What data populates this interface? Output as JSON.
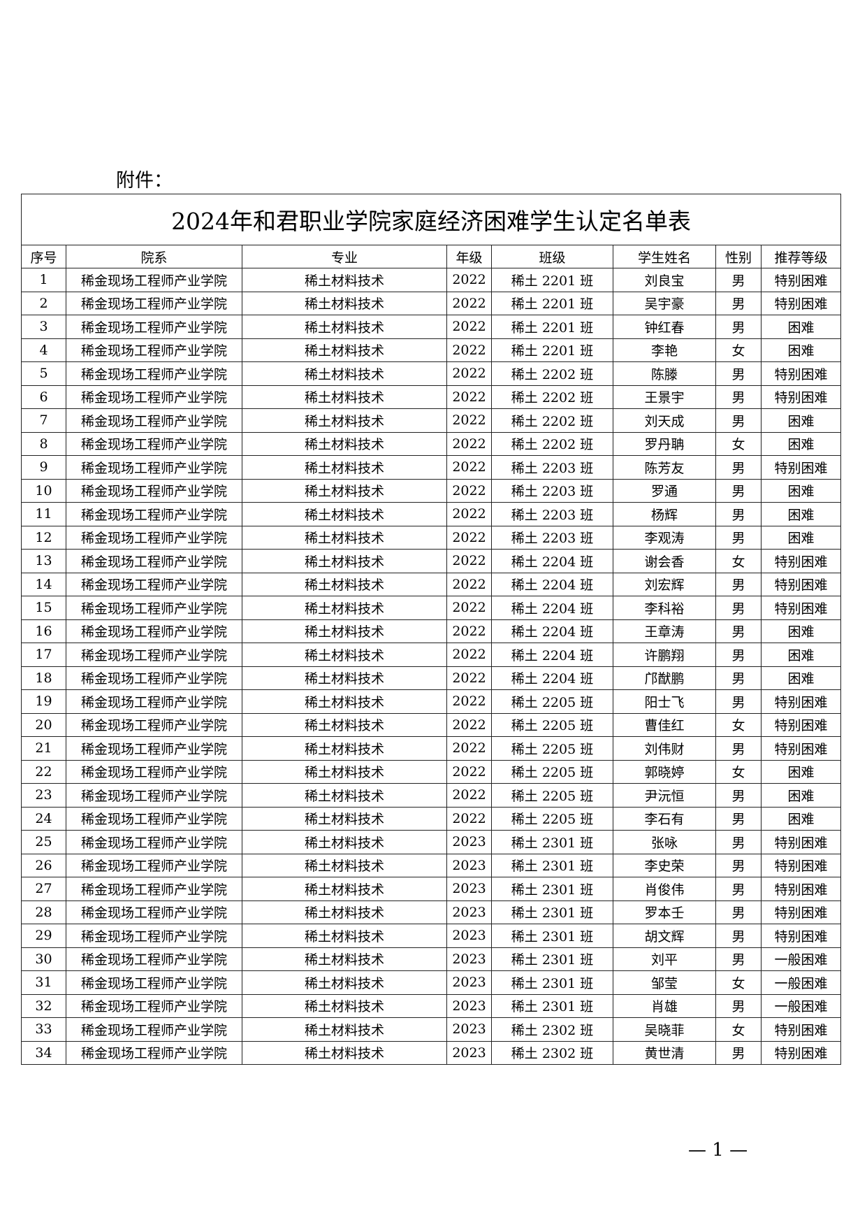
{
  "attachment_label": "附件：",
  "title": "2024年和君职业学院家庭经济困难学生认定名单表",
  "headers": [
    "序号",
    "院系",
    "专业",
    "年级",
    "班级",
    "学生姓名",
    "性别",
    "推荐等级"
  ],
  "rows": [
    [
      "1",
      "稀金现场工程师产业学院",
      "稀土材料技术",
      "2022",
      "稀土 2201 班",
      "刘良宝",
      "男",
      "特别困难"
    ],
    [
      "2",
      "稀金现场工程师产业学院",
      "稀土材料技术",
      "2022",
      "稀土 2201 班",
      "吴宇豪",
      "男",
      "特别困难"
    ],
    [
      "3",
      "稀金现场工程师产业学院",
      "稀土材料技术",
      "2022",
      "稀土 2201 班",
      "钟红春",
      "男",
      "困难"
    ],
    [
      "4",
      "稀金现场工程师产业学院",
      "稀土材料技术",
      "2022",
      "稀土 2201 班",
      "李艳",
      "女",
      "困难"
    ],
    [
      "5",
      "稀金现场工程师产业学院",
      "稀土材料技术",
      "2022",
      "稀土 2202 班",
      "陈滕",
      "男",
      "特别困难"
    ],
    [
      "6",
      "稀金现场工程师产业学院",
      "稀土材料技术",
      "2022",
      "稀土 2202 班",
      "王景宇",
      "男",
      "特别困难"
    ],
    [
      "7",
      "稀金现场工程师产业学院",
      "稀土材料技术",
      "2022",
      "稀土 2202 班",
      "刘天成",
      "男",
      "困难"
    ],
    [
      "8",
      "稀金现场工程师产业学院",
      "稀土材料技术",
      "2022",
      "稀土 2202 班",
      "罗丹聃",
      "女",
      "困难"
    ],
    [
      "9",
      "稀金现场工程师产业学院",
      "稀土材料技术",
      "2022",
      "稀土 2203 班",
      "陈芳友",
      "男",
      "特别困难"
    ],
    [
      "10",
      "稀金现场工程师产业学院",
      "稀土材料技术",
      "2022",
      "稀土 2203 班",
      "罗通",
      "男",
      "困难"
    ],
    [
      "11",
      "稀金现场工程师产业学院",
      "稀土材料技术",
      "2022",
      "稀土 2203 班",
      "杨辉",
      "男",
      "困难"
    ],
    [
      "12",
      "稀金现场工程师产业学院",
      "稀土材料技术",
      "2022",
      "稀土 2203 班",
      "李观涛",
      "男",
      "困难"
    ],
    [
      "13",
      "稀金现场工程师产业学院",
      "稀土材料技术",
      "2022",
      "稀土 2204 班",
      "谢会香",
      "女",
      "特别困难"
    ],
    [
      "14",
      "稀金现场工程师产业学院",
      "稀土材料技术",
      "2022",
      "稀土 2204 班",
      "刘宏辉",
      "男",
      "特别困难"
    ],
    [
      "15",
      "稀金现场工程师产业学院",
      "稀土材料技术",
      "2022",
      "稀土 2204 班",
      "李科裕",
      "男",
      "特别困难"
    ],
    [
      "16",
      "稀金现场工程师产业学院",
      "稀土材料技术",
      "2022",
      "稀土 2204 班",
      "王章涛",
      "男",
      "困难"
    ],
    [
      "17",
      "稀金现场工程师产业学院",
      "稀土材料技术",
      "2022",
      "稀土 2204 班",
      "许鹏翔",
      "男",
      "困难"
    ],
    [
      "18",
      "稀金现场工程师产业学院",
      "稀土材料技术",
      "2022",
      "稀土 2204 班",
      "邝猷鹏",
      "男",
      "困难"
    ],
    [
      "19",
      "稀金现场工程师产业学院",
      "稀土材料技术",
      "2022",
      "稀土 2205 班",
      "阳士飞",
      "男",
      "特别困难"
    ],
    [
      "20",
      "稀金现场工程师产业学院",
      "稀土材料技术",
      "2022",
      "稀土 2205 班",
      "曹佳红",
      "女",
      "特别困难"
    ],
    [
      "21",
      "稀金现场工程师产业学院",
      "稀土材料技术",
      "2022",
      "稀土 2205 班",
      "刘伟财",
      "男",
      "特别困难"
    ],
    [
      "22",
      "稀金现场工程师产业学院",
      "稀土材料技术",
      "2022",
      "稀土 2205 班",
      "郭晓婷",
      "女",
      "困难"
    ],
    [
      "23",
      "稀金现场工程师产业学院",
      "稀土材料技术",
      "2022",
      "稀土 2205 班",
      "尹沅恒",
      "男",
      "困难"
    ],
    [
      "24",
      "稀金现场工程师产业学院",
      "稀土材料技术",
      "2022",
      "稀土 2205 班",
      "李石有",
      "男",
      "困难"
    ],
    [
      "25",
      "稀金现场工程师产业学院",
      "稀土材料技术",
      "2023",
      "稀土 2301 班",
      "张咏",
      "男",
      "特别困难"
    ],
    [
      "26",
      "稀金现场工程师产业学院",
      "稀土材料技术",
      "2023",
      "稀土 2301 班",
      "李史荣",
      "男",
      "特别困难"
    ],
    [
      "27",
      "稀金现场工程师产业学院",
      "稀土材料技术",
      "2023",
      "稀土 2301 班",
      "肖俊伟",
      "男",
      "特别困难"
    ],
    [
      "28",
      "稀金现场工程师产业学院",
      "稀土材料技术",
      "2023",
      "稀土 2301 班",
      "罗本壬",
      "男",
      "特别困难"
    ],
    [
      "29",
      "稀金现场工程师产业学院",
      "稀土材料技术",
      "2023",
      "稀土 2301 班",
      "胡文辉",
      "男",
      "特别困难"
    ],
    [
      "30",
      "稀金现场工程师产业学院",
      "稀土材料技术",
      "2023",
      "稀土 2301 班",
      "刘平",
      "男",
      "一般困难"
    ],
    [
      "31",
      "稀金现场工程师产业学院",
      "稀土材料技术",
      "2023",
      "稀土 2301 班",
      "邹莹",
      "女",
      "一般困难"
    ],
    [
      "32",
      "稀金现场工程师产业学院",
      "稀土材料技术",
      "2023",
      "稀土 2301 班",
      "肖雄",
      "男",
      "一般困难"
    ],
    [
      "33",
      "稀金现场工程师产业学院",
      "稀土材料技术",
      "2023",
      "稀土 2302 班",
      "吴晓菲",
      "女",
      "特别困难"
    ],
    [
      "34",
      "稀金现场工程师产业学院",
      "稀土材料技术",
      "2023",
      "稀土 2302 班",
      "黄世清",
      "男",
      "特别困难"
    ]
  ],
  "page_number": "— 1 —"
}
